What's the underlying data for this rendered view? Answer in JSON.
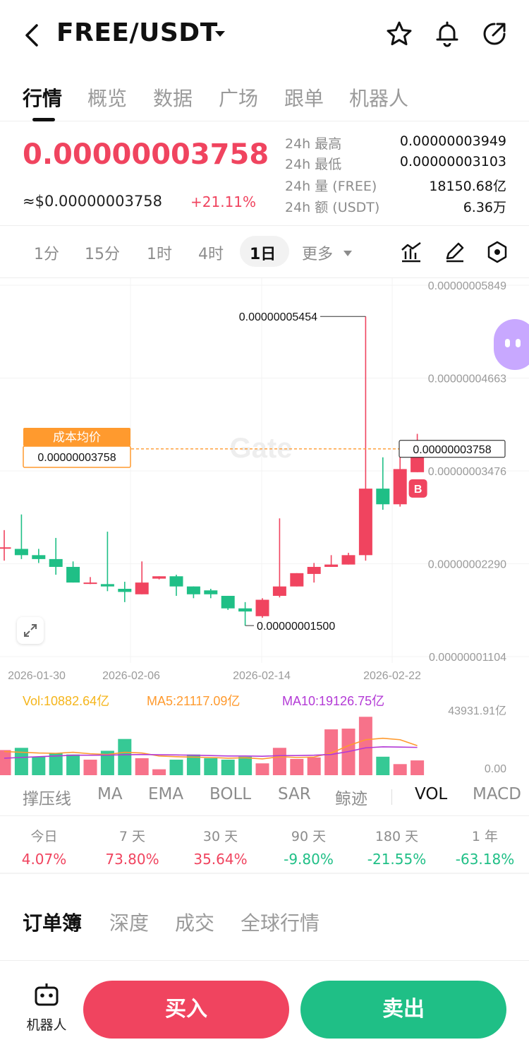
{
  "header": {
    "pair": "FREE/USDT",
    "icons": [
      "back-icon",
      "caret-down-icon",
      "star-icon",
      "bell-icon",
      "share-icon"
    ]
  },
  "tabs": [
    {
      "label": "行情",
      "active": true
    },
    {
      "label": "概览",
      "active": false
    },
    {
      "label": "数据",
      "active": false
    },
    {
      "label": "广场",
      "active": false
    },
    {
      "label": "跟单",
      "active": false
    },
    {
      "label": "机器人",
      "active": false
    }
  ],
  "ticker": {
    "last_price": "0.00000003758",
    "usd_price": "≈$0.00000003758",
    "change": "+21.11%",
    "stats": [
      {
        "label": "24h  最高",
        "value": "0.00000003949"
      },
      {
        "label": "24h  最低",
        "value": "0.00000003103"
      },
      {
        "label": "24h  量 (FREE)",
        "value": "18150.68亿"
      },
      {
        "label": "24h  额 (USDT)",
        "value": "6.36万"
      }
    ]
  },
  "intervals": {
    "items": [
      "1分",
      "15分",
      "1时",
      "4时",
      "1日"
    ],
    "active": "1日",
    "more": "更多",
    "tools": [
      "indicator-icon",
      "draw-pen-icon",
      "settings-hex-icon"
    ]
  },
  "chart_data": {
    "type": "candlestick",
    "price_axis": [
      "0.00000005849",
      "0.00000004663",
      "0.00000003476",
      "0.00000002290",
      "0.00000001104"
    ],
    "ylim": [
      1.104e-08,
      5.849e-08
    ],
    "date_labels": [
      "2026-01-30",
      "2026-02-06",
      "2026-02-14",
      "2026-02-22"
    ],
    "max_label": "0.00000005454",
    "min_label": "0.00000001500",
    "current_price_label": "0.00000003758",
    "cost_label": "成本均价",
    "cost_value": "0.00000003758",
    "buy_marker": "B",
    "candles": [
      {
        "o": 2.5e-08,
        "c": 2.5e-08,
        "h": 2.72e-08,
        "l": 2.33e-08
      },
      {
        "o": 2.48e-08,
        "c": 2.4e-08,
        "h": 2.92e-08,
        "l": 2.35e-08
      },
      {
        "o": 2.4e-08,
        "c": 2.35e-08,
        "h": 2.48e-08,
        "l": 2.3e-08
      },
      {
        "o": 2.35e-08,
        "c": 2.25e-08,
        "h": 2.62e-08,
        "l": 2.15e-08
      },
      {
        "o": 2.25e-08,
        "c": 2.05e-08,
        "h": 2.32e-08,
        "l": 2.05e-08
      },
      {
        "o": 2.04e-08,
        "c": 2.05e-08,
        "h": 2.12e-08,
        "l": 2.03e-08
      },
      {
        "o": 2.03e-08,
        "c": 2e-08,
        "h": 2.7e-08,
        "l": 1.94e-08
      },
      {
        "o": 1.97e-08,
        "c": 1.93e-08,
        "h": 2.06e-08,
        "l": 1.8e-08
      },
      {
        "o": 1.9e-08,
        "c": 2.05e-08,
        "h": 2.32e-08,
        "l": 1.9e-08
      },
      {
        "o": 2.1e-08,
        "c": 2.13e-08,
        "h": 2.13e-08,
        "l": 2.09e-08
      },
      {
        "o": 2.13e-08,
        "c": 2e-08,
        "h": 2.15e-08,
        "l": 1.88e-08
      },
      {
        "o": 2e-08,
        "c": 1.9e-08,
        "h": 2e-08,
        "l": 1.85e-08
      },
      {
        "o": 1.95e-08,
        "c": 1.9e-08,
        "h": 1.97e-08,
        "l": 1.85e-08
      },
      {
        "o": 1.88e-08,
        "c": 1.72e-08,
        "h": 1.88e-08,
        "l": 1.7e-08
      },
      {
        "o": 1.72e-08,
        "c": 1.68e-08,
        "h": 1.8e-08,
        "l": 1.5e-08
      },
      {
        "o": 1.62e-08,
        "c": 1.83e-08,
        "h": 1.85e-08,
        "l": 1.6e-08
      },
      {
        "o": 1.88e-08,
        "c": 2e-08,
        "h": 2.87e-08,
        "l": 1.86e-08
      },
      {
        "o": 2e-08,
        "c": 2.17e-08,
        "h": 2.17e-08,
        "l": 2e-08
      },
      {
        "o": 2.16e-08,
        "c": 2.25e-08,
        "h": 2.3e-08,
        "l": 2.05e-08
      },
      {
        "o": 2.25e-08,
        "c": 2.28e-08,
        "h": 2.4e-08,
        "l": 2.25e-08
      },
      {
        "o": 2.28e-08,
        "c": 2.4e-08,
        "h": 2.43e-08,
        "l": 2.28e-08
      },
      {
        "o": 2.4e-08,
        "c": 3.25e-08,
        "h": 5.45e-08,
        "l": 2.33e-08
      },
      {
        "o": 3.25e-08,
        "c": 3.05e-08,
        "h": 3.65e-08,
        "l": 2.98e-08
      },
      {
        "o": 3.05e-08,
        "c": 3.5e-08,
        "h": 3.65e-08,
        "l": 3.02e-08
      },
      {
        "o": 3.46e-08,
        "c": 3.75e-08,
        "h": 3.95e-08,
        "l": 3.46e-08
      }
    ],
    "volume": {
      "vol_label": "Vol:10882.64亿",
      "ma5_label": "MA5:21117.09亿",
      "ma10_label": "MA10:19126.75亿",
      "axis_max": "43931.91亿",
      "axis_min": "0.00",
      "max": 43931.91,
      "bars": [
        17000,
        18500,
        12500,
        15000,
        14000,
        10500,
        16500,
        24500,
        11500,
        4000,
        10500,
        14000,
        11500,
        10500,
        12500,
        8000,
        18500,
        11000,
        12000,
        31000,
        31500,
        39500,
        12500,
        7500,
        10000
      ],
      "ma5": [
        16000,
        15500,
        15000,
        14800,
        15500,
        14500,
        14000,
        15500,
        15000,
        13000,
        12500,
        12200,
        12000,
        11500,
        11800,
        11000,
        12500,
        12000,
        12300,
        15000,
        20000,
        24000,
        25000,
        24000,
        20000
      ],
      "ma10": [
        11500,
        12000,
        12500,
        13000,
        13500,
        13500,
        13600,
        13800,
        14000,
        13800,
        13700,
        13500,
        13300,
        13000,
        13000,
        12800,
        13200,
        13300,
        13500,
        14000,
        16000,
        18500,
        19200,
        19000,
        18800
      ]
    },
    "colors": {
      "up": "#f0445f",
      "down": "#1fbf86",
      "ma5": "#ff9a2e",
      "ma10": "#b33ad6",
      "vol_text": "#f5b51b"
    }
  },
  "indicators": {
    "items": [
      "撑压线",
      "MA",
      "EMA",
      "BOLL",
      "SAR",
      "鲸迹",
      "VOL",
      "MACD"
    ],
    "active": "VOL"
  },
  "performance": [
    {
      "label": "今日",
      "value": "4.07%",
      "dir": "up"
    },
    {
      "label": "7 天",
      "value": "73.80%",
      "dir": "up"
    },
    {
      "label": "30 天",
      "value": "35.64%",
      "dir": "up"
    },
    {
      "label": "90 天",
      "value": "-9.80%",
      "dir": "down"
    },
    {
      "label": "180 天",
      "value": "-21.55%",
      "dir": "down"
    },
    {
      "label": "1 年",
      "value": "-63.18%",
      "dir": "down"
    }
  ],
  "book_tabs": [
    {
      "label": "订单簿",
      "active": true
    },
    {
      "label": "深度",
      "active": false
    },
    {
      "label": "成交",
      "active": false
    },
    {
      "label": "全球行情",
      "active": false
    }
  ],
  "bottom": {
    "robot_label": "机器人",
    "buy_label": "买入",
    "sell_label": "卖出"
  }
}
